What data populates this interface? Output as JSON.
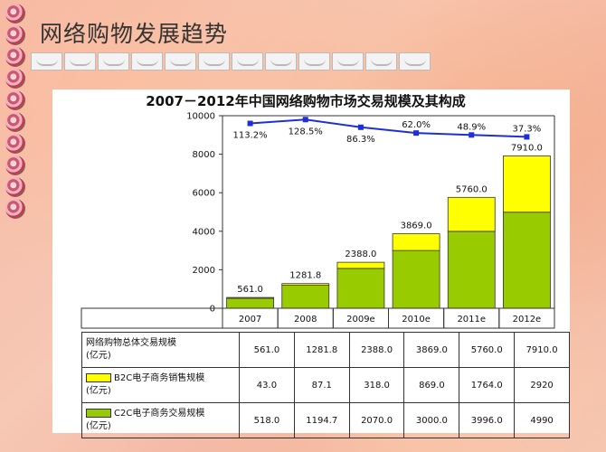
{
  "page": {
    "title": "网络购物发展趋势"
  },
  "chart_data": {
    "type": "bar",
    "title": "2007－2012年中国网络购物市场交易规模及其构成",
    "categories": [
      "2007",
      "2008",
      "2009e",
      "2010e",
      "2011e",
      "2012e"
    ],
    "ylim": [
      0,
      10000
    ],
    "yticks": [
      0,
      2000,
      4000,
      6000,
      8000,
      10000
    ],
    "totals": [
      561.0,
      1281.8,
      2388.0,
      3869.0,
      5760.0,
      7910.0
    ],
    "total_labels": [
      "561.0",
      "1281.8",
      "2388.0",
      "3869.0",
      "5760.0",
      "7910.0"
    ],
    "series": [
      {
        "name": "B2C电子商务销售规模",
        "unit": "(亿元)",
        "color": "#ffff00",
        "values": [
          43.0,
          87.1,
          318.0,
          869.0,
          1764.0,
          2920
        ],
        "labels": [
          "43.0",
          "87.1",
          "318.0",
          "869.0",
          "1764.0",
          "2920"
        ]
      },
      {
        "name": "C2C电子商务交易规模",
        "unit": "(亿元)",
        "color": "#99cc00",
        "values": [
          518.0,
          1194.7,
          2070.0,
          3000.0,
          3996.0,
          4990
        ],
        "labels": [
          "518.0",
          "1194.7",
          "2070.0",
          "3000.0",
          "3996.0",
          "4990"
        ]
      }
    ],
    "growth": {
      "color": "#1f2fd6",
      "values": [
        9600,
        9800,
        9400,
        9100,
        9000,
        8900
      ],
      "labels": [
        "113.2%",
        "128.5%",
        "86.3%",
        "62.0%",
        "48.9%",
        "37.3%"
      ]
    },
    "table": {
      "total_row_label": "网络购物总体交易规模",
      "total_row_unit": "(亿元)"
    }
  }
}
